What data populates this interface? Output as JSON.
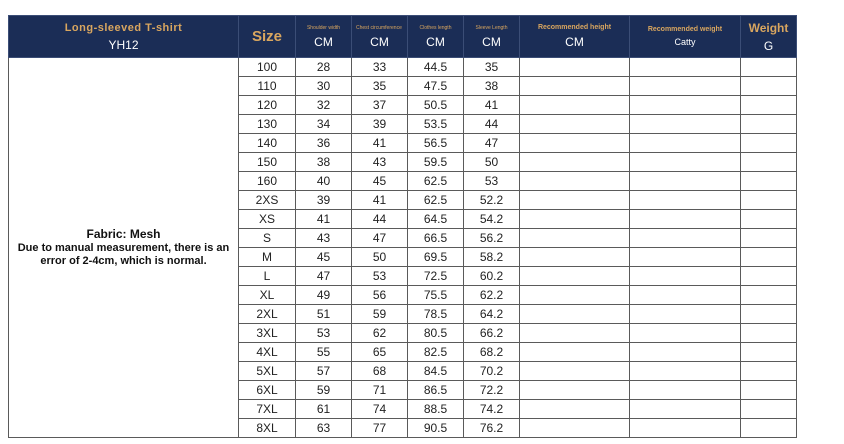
{
  "header": {
    "product_name": "Long-sleeved T-shirt",
    "product_code": "YH12",
    "size_label": "Size",
    "shoulder_label": "Shoulder width",
    "chest_label": "Chest circumference",
    "length_label": "Clothes length",
    "sleeve_label": "Sleeve Length",
    "rec_height_label": "Recommended height",
    "rec_weight_label": "Recommended weight",
    "weight_label": "Weight",
    "unit_cm": "CM",
    "unit_catty": "Catty",
    "unit_g": "G"
  },
  "notes": {
    "fabric": "Fabric: Mesh",
    "line1": "Due to manual measurement, there is an",
    "line2": "error of 2-4cm, which is normal."
  },
  "rows": [
    {
      "size": "100",
      "shoulder": "28",
      "chest": "33",
      "length": "44.5",
      "sleeve": "35"
    },
    {
      "size": "110",
      "shoulder": "30",
      "chest": "35",
      "length": "47.5",
      "sleeve": "38"
    },
    {
      "size": "120",
      "shoulder": "32",
      "chest": "37",
      "length": "50.5",
      "sleeve": "41"
    },
    {
      "size": "130",
      "shoulder": "34",
      "chest": "39",
      "length": "53.5",
      "sleeve": "44"
    },
    {
      "size": "140",
      "shoulder": "36",
      "chest": "41",
      "length": "56.5",
      "sleeve": "47"
    },
    {
      "size": "150",
      "shoulder": "38",
      "chest": "43",
      "length": "59.5",
      "sleeve": "50"
    },
    {
      "size": "160",
      "shoulder": "40",
      "chest": "45",
      "length": "62.5",
      "sleeve": "53"
    },
    {
      "size": "2XS",
      "shoulder": "39",
      "chest": "41",
      "length": "62.5",
      "sleeve": "52.2"
    },
    {
      "size": "XS",
      "shoulder": "41",
      "chest": "44",
      "length": "64.5",
      "sleeve": "54.2"
    },
    {
      "size": "S",
      "shoulder": "43",
      "chest": "47",
      "length": "66.5",
      "sleeve": "56.2"
    },
    {
      "size": "M",
      "shoulder": "45",
      "chest": "50",
      "length": "69.5",
      "sleeve": "58.2"
    },
    {
      "size": "L",
      "shoulder": "47",
      "chest": "53",
      "length": "72.5",
      "sleeve": "60.2"
    },
    {
      "size": "XL",
      "shoulder": "49",
      "chest": "56",
      "length": "75.5",
      "sleeve": "62.2"
    },
    {
      "size": "2XL",
      "shoulder": "51",
      "chest": "59",
      "length": "78.5",
      "sleeve": "64.2"
    },
    {
      "size": "3XL",
      "shoulder": "53",
      "chest": "62",
      "length": "80.5",
      "sleeve": "66.2"
    },
    {
      "size": "4XL",
      "shoulder": "55",
      "chest": "65",
      "length": "82.5",
      "sleeve": "68.2"
    },
    {
      "size": "5XL",
      "shoulder": "57",
      "chest": "68",
      "length": "84.5",
      "sleeve": "70.2"
    },
    {
      "size": "6XL",
      "shoulder": "59",
      "chest": "71",
      "length": "86.5",
      "sleeve": "72.2"
    },
    {
      "size": "7XL",
      "shoulder": "61",
      "chest": "74",
      "length": "88.5",
      "sleeve": "74.2"
    },
    {
      "size": "8XL",
      "shoulder": "63",
      "chest": "77",
      "length": "90.5",
      "sleeve": "76.2"
    }
  ],
  "colors": {
    "header_bg": "#1b2d56",
    "header_accent": "#d9a65f",
    "grid_line": "#5a5a5a"
  }
}
